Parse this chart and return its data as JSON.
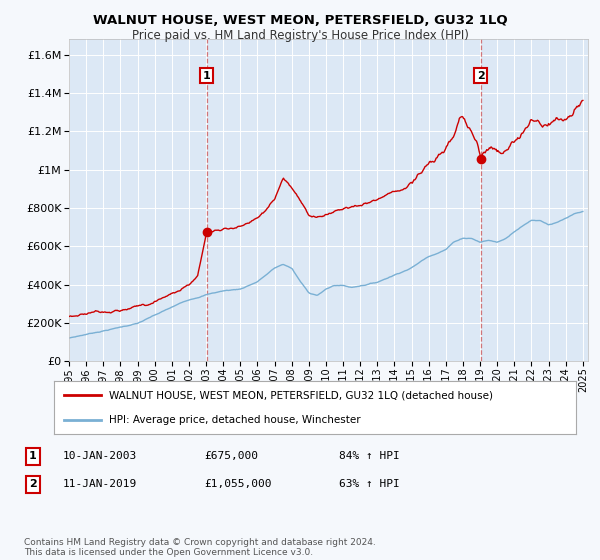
{
  "title": "WALNUT HOUSE, WEST MEON, PETERSFIELD, GU32 1LQ",
  "subtitle": "Price paid vs. HM Land Registry's House Price Index (HPI)",
  "ytick_values": [
    0,
    200000,
    400000,
    600000,
    800000,
    1000000,
    1200000,
    1400000,
    1600000
  ],
  "ylim": [
    0,
    1680000
  ],
  "xlim_start": 1995.0,
  "xlim_end": 2025.3,
  "xtick_years": [
    1995,
    1996,
    1997,
    1998,
    1999,
    2000,
    2001,
    2002,
    2003,
    2004,
    2005,
    2006,
    2007,
    2008,
    2009,
    2010,
    2011,
    2012,
    2013,
    2014,
    2015,
    2016,
    2017,
    2018,
    2019,
    2020,
    2021,
    2022,
    2023,
    2024,
    2025
  ],
  "sale1_x": 2003.03,
  "sale1_y": 675000,
  "sale2_x": 2019.03,
  "sale2_y": 1055000,
  "red_line_color": "#cc0000",
  "blue_line_color": "#7ab0d4",
  "background_color": "#f5f8fc",
  "plot_bg_color": "#dce8f5",
  "legend_label_red": "WALNUT HOUSE, WEST MEON, PETERSFIELD, GU32 1LQ (detached house)",
  "legend_label_blue": "HPI: Average price, detached house, Winchester",
  "note1_date": "10-JAN-2003",
  "note1_price": "£675,000",
  "note1_hpi": "84% ↑ HPI",
  "note2_date": "11-JAN-2019",
  "note2_price": "£1,055,000",
  "note2_hpi": "63% ↑ HPI",
  "footer": "Contains HM Land Registry data © Crown copyright and database right 2024.\nThis data is licensed under the Open Government Licence v3.0."
}
